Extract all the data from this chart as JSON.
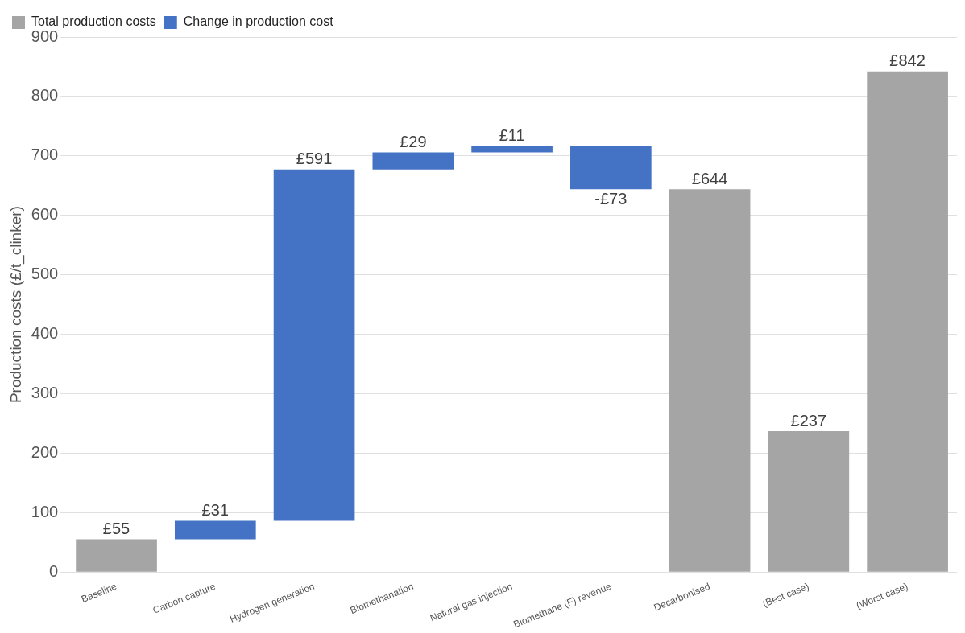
{
  "chart_data": {
    "type": "bar",
    "ylabel": "Production costs (£/t_clinker)",
    "categories": [
      "Baseline",
      "Carbon capture",
      "Hydrogen generation",
      "Biomethanation",
      "Natural gas injection",
      "Biomethane (F) revenue",
      "Decarbonised",
      "(Best case)",
      "(Worst case)"
    ],
    "series": [
      {
        "name": "Total production costs",
        "color": "#a5a5a5",
        "base": [
          0,
          null,
          null,
          null,
          null,
          null,
          0,
          0,
          0
        ],
        "values": [
          55,
          null,
          null,
          null,
          null,
          null,
          644,
          237,
          842
        ],
        "value_labels": [
          "£55",
          null,
          null,
          null,
          null,
          null,
          "£644",
          "£237",
          "£842"
        ]
      },
      {
        "name": "Change in production cost",
        "color": "#4472c4",
        "base": [
          null,
          55,
          86,
          677,
          706,
          717,
          null,
          null,
          null
        ],
        "values": [
          null,
          31,
          591,
          29,
          11,
          -73,
          null,
          null,
          null
        ],
        "value_labels": [
          null,
          "£31",
          "£591",
          "£29",
          "£11",
          "-£73",
          null,
          null,
          null
        ]
      }
    ],
    "ylim": [
      0,
      900
    ],
    "yticks": [
      0,
      100,
      200,
      300,
      400,
      500,
      600,
      700,
      800,
      900
    ],
    "grid": "y",
    "legend": "top left"
  }
}
